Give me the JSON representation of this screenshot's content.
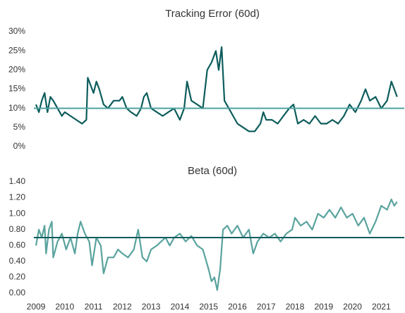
{
  "chart_data": [
    {
      "type": "line",
      "title": "Tracking Error (60d)",
      "xlim": [
        2009,
        2021.75
      ],
      "ylim": [
        0,
        30
      ],
      "yticks": [
        {
          "value": 0,
          "label": "0%"
        },
        {
          "value": 5,
          "label": "5%"
        },
        {
          "value": 10,
          "label": "10%"
        },
        {
          "value": 15,
          "label": "15%"
        },
        {
          "value": 20,
          "label": "20%"
        },
        {
          "value": 25,
          "label": "25%"
        },
        {
          "value": 30,
          "label": "30%"
        }
      ],
      "reference_line": {
        "value": 10,
        "color": "#4fa3a0"
      },
      "series": [
        {
          "color": "#0d5c5c",
          "x": [
            2009.0,
            2009.1,
            2009.2,
            2009.3,
            2009.4,
            2009.5,
            2009.6,
            2009.75,
            2009.9,
            2010.0,
            2010.2,
            2010.4,
            2010.6,
            2010.75,
            2010.8,
            2010.9,
            2011.0,
            2011.1,
            2011.2,
            2011.35,
            2011.5,
            2011.7,
            2011.9,
            2012.0,
            2012.15,
            2012.3,
            2012.5,
            2012.65,
            2012.75,
            2012.85,
            2013.0,
            2013.2,
            2013.4,
            2013.6,
            2013.8,
            2014.0,
            2014.15,
            2014.25,
            2014.4,
            2014.6,
            2014.8,
            2014.95,
            2015.1,
            2015.25,
            2015.35,
            2015.45,
            2015.55,
            2015.7,
            2015.85,
            2016.0,
            2016.2,
            2016.4,
            2016.6,
            2016.8,
            2016.9,
            2017.0,
            2017.2,
            2017.4,
            2017.6,
            2017.8,
            2017.95,
            2018.1,
            2018.3,
            2018.5,
            2018.7,
            2018.9,
            2019.1,
            2019.3,
            2019.5,
            2019.7,
            2019.9,
            2020.1,
            2020.3,
            2020.45,
            2020.6,
            2020.8,
            2021.0,
            2021.2,
            2021.35,
            2021.45,
            2021.55
          ],
          "values": [
            11,
            9,
            12,
            14,
            9,
            13,
            12,
            10,
            8,
            9,
            8,
            7,
            6,
            7,
            18,
            16,
            14,
            17,
            15,
            11,
            10,
            12,
            12,
            13,
            10,
            9,
            8,
            10,
            13,
            14,
            10,
            9,
            8,
            9,
            10,
            7,
            10,
            17,
            12,
            11,
            10,
            20,
            22,
            25,
            20,
            26,
            12,
            10,
            8,
            6,
            5,
            4,
            4,
            6,
            9,
            7,
            7,
            6,
            8,
            10,
            11,
            6,
            7,
            6,
            8,
            6,
            6,
            7,
            6,
            8,
            11,
            9,
            12,
            15,
            12,
            13,
            10,
            12,
            17,
            15,
            13
          ]
        }
      ]
    },
    {
      "type": "line",
      "title": "Beta (60d)",
      "xlim": [
        2009,
        2021.75
      ],
      "ylim": [
        0,
        1.4
      ],
      "xticks": [
        2009,
        2010,
        2011,
        2012,
        2013,
        2014,
        2015,
        2016,
        2017,
        2018,
        2019,
        2020,
        2021
      ],
      "yticks": [
        {
          "value": 0,
          "label": "0.00"
        },
        {
          "value": 0.2,
          "label": "0.20"
        },
        {
          "value": 0.4,
          "label": "0.40"
        },
        {
          "value": 0.6,
          "label": "0.60"
        },
        {
          "value": 0.8,
          "label": "0.80"
        },
        {
          "value": 1,
          "label": "1.00"
        },
        {
          "value": 1.2,
          "label": "1.20"
        },
        {
          "value": 1.4,
          "label": "1.40"
        }
      ],
      "reference_line": {
        "value": 0.7,
        "color": "#0d5c5c"
      },
      "series": [
        {
          "color": "#5aa39e",
          "x": [
            2009.0,
            2009.1,
            2009.2,
            2009.3,
            2009.35,
            2009.45,
            2009.55,
            2009.6,
            2009.75,
            2009.9,
            2010.05,
            2010.2,
            2010.35,
            2010.45,
            2010.55,
            2010.7,
            2010.85,
            2010.95,
            2011.1,
            2011.25,
            2011.35,
            2011.5,
            2011.7,
            2011.85,
            2012.0,
            2012.2,
            2012.4,
            2012.55,
            2012.7,
            2012.85,
            2013.0,
            2013.2,
            2013.35,
            2013.5,
            2013.65,
            2013.8,
            2014.0,
            2014.2,
            2014.4,
            2014.6,
            2014.8,
            2015.0,
            2015.1,
            2015.2,
            2015.3,
            2015.4,
            2015.5,
            2015.65,
            2015.8,
            2016.0,
            2016.2,
            2016.4,
            2016.55,
            2016.7,
            2016.9,
            2017.1,
            2017.3,
            2017.5,
            2017.7,
            2017.9,
            2018.0,
            2018.2,
            2018.4,
            2018.6,
            2018.8,
            2019.0,
            2019.2,
            2019.4,
            2019.6,
            2019.8,
            2020.0,
            2020.2,
            2020.4,
            2020.6,
            2020.8,
            2021.0,
            2021.2,
            2021.35,
            2021.45,
            2021.55
          ],
          "values": [
            0.6,
            0.8,
            0.7,
            0.85,
            0.5,
            0.8,
            0.9,
            0.45,
            0.65,
            0.75,
            0.55,
            0.7,
            0.5,
            0.75,
            0.9,
            0.75,
            0.65,
            0.35,
            0.7,
            0.6,
            0.25,
            0.45,
            0.45,
            0.55,
            0.5,
            0.45,
            0.55,
            0.8,
            0.45,
            0.4,
            0.55,
            0.6,
            0.65,
            0.7,
            0.6,
            0.7,
            0.75,
            0.65,
            0.72,
            0.6,
            0.55,
            0.3,
            0.15,
            0.2,
            0.04,
            0.3,
            0.8,
            0.85,
            0.75,
            0.85,
            0.7,
            0.8,
            0.5,
            0.65,
            0.75,
            0.7,
            0.75,
            0.65,
            0.75,
            0.8,
            0.95,
            0.85,
            0.9,
            0.8,
            1.0,
            0.95,
            1.05,
            0.95,
            1.08,
            0.95,
            1.0,
            0.85,
            0.95,
            0.75,
            0.9,
            1.1,
            1.05,
            1.18,
            1.1,
            1.15
          ]
        }
      ]
    }
  ]
}
